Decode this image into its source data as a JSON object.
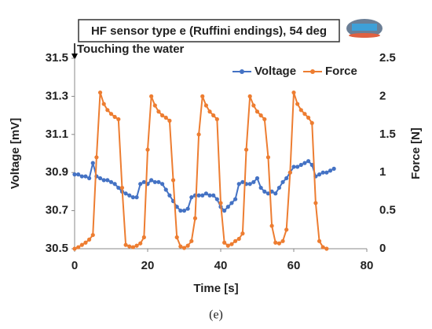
{
  "chart_data": {
    "type": "line",
    "title": "HF sensor type e (Ruffini endings), 54 deg",
    "annotation": "Touching the water",
    "caption": "(e)",
    "x_label": "Time   [s]",
    "y_label": "Voltage  [mV]",
    "y2_label": "Force  [N]",
    "x": [
      0,
      1,
      2,
      3,
      4,
      5,
      6,
      7,
      8,
      9,
      10,
      11,
      12,
      13,
      14,
      15,
      16,
      17,
      18,
      19,
      20,
      21,
      22,
      23,
      24,
      25,
      26,
      27,
      28,
      29,
      30,
      31,
      32,
      33,
      34,
      35,
      36,
      37,
      38,
      39,
      40,
      41,
      42,
      43,
      44,
      45,
      46,
      47,
      48,
      49,
      50,
      51,
      52,
      53,
      54,
      55,
      56,
      57,
      58,
      59,
      60,
      61,
      62,
      63,
      64,
      65,
      66,
      67,
      68,
      69,
      70,
      71
    ],
    "series": [
      {
        "name": "Voltage",
        "color": "#4472c4",
        "values": [
          30.89,
          30.89,
          30.88,
          30.88,
          30.87,
          30.95,
          30.88,
          30.87,
          30.86,
          30.86,
          30.85,
          30.84,
          30.82,
          30.8,
          30.79,
          30.78,
          30.77,
          30.77,
          30.84,
          30.85,
          30.84,
          30.86,
          30.85,
          30.85,
          30.84,
          30.81,
          30.78,
          30.75,
          30.72,
          30.7,
          30.7,
          30.71,
          30.77,
          30.78,
          30.78,
          30.78,
          30.79,
          30.78,
          30.78,
          30.76,
          30.72,
          30.7,
          30.72,
          30.74,
          30.76,
          30.84,
          30.85,
          30.84,
          30.84,
          30.85,
          30.87,
          30.82,
          30.8,
          30.79,
          30.8,
          30.79,
          30.82,
          30.85,
          30.87,
          30.9,
          30.93,
          30.93,
          30.94,
          30.95,
          30.96,
          30.94,
          30.88,
          30.89,
          30.9,
          30.9,
          30.91,
          30.92
        ]
      },
      {
        "name": "Force",
        "color": "#ed7d31",
        "axis": "y2",
        "values": [
          0,
          0.02,
          0.05,
          0.08,
          0.12,
          0.18,
          1.2,
          2.05,
          1.9,
          1.82,
          1.77,
          1.73,
          1.7,
          0.8,
          0.05,
          0.03,
          0.02,
          0.04,
          0.07,
          0.15,
          1.3,
          2.0,
          1.88,
          1.8,
          1.75,
          1.72,
          1.68,
          0.9,
          0.15,
          0.03,
          0.01,
          0.04,
          0.1,
          0.4,
          1.5,
          2.0,
          1.88,
          1.8,
          1.75,
          1.7,
          0.6,
          0.08,
          0.04,
          0.06,
          0.1,
          0.13,
          0.2,
          1.3,
          2.0,
          1.88,
          1.8,
          1.75,
          1.7,
          1.2,
          0.3,
          0.08,
          0.07,
          0.1,
          0.25,
          1.0,
          2.05,
          1.9,
          1.82,
          1.77,
          1.72,
          1.65,
          0.6,
          0.1,
          0.02,
          0.0,
          null,
          null
        ]
      }
    ],
    "xlim": [
      0,
      80
    ],
    "xticks": [
      0,
      20,
      40,
      60,
      80
    ],
    "ylim": [
      30.5,
      31.5
    ],
    "yticks": [
      30.5,
      30.7,
      30.9,
      31.1,
      31.3,
      31.5
    ],
    "y2lim": [
      0,
      2.5
    ],
    "y2ticks": [
      0,
      0.5,
      1,
      1.5,
      2,
      2.5
    ],
    "legend": "top-right",
    "grid": false
  }
}
